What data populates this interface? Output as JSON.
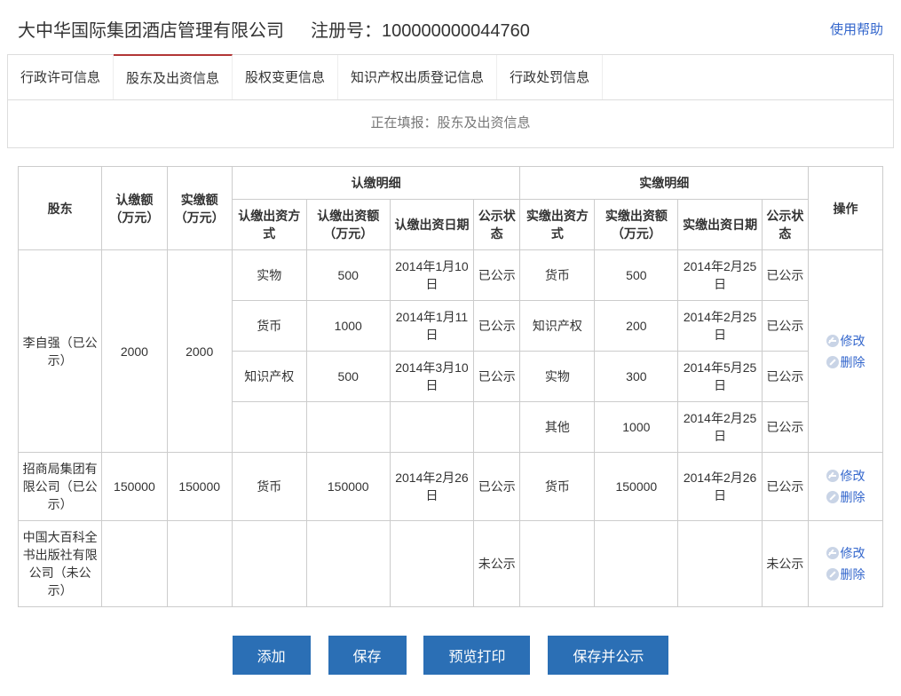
{
  "header": {
    "company_name": "大中华国际集团酒店管理有限公司",
    "reg_label": "注册号：",
    "reg_no": "100000000044760",
    "help_link": "使用帮助"
  },
  "tabs": {
    "items": [
      {
        "label": "行政许可信息",
        "active": false
      },
      {
        "label": "股东及出资信息",
        "active": true
      },
      {
        "label": "股权变更信息",
        "active": false
      },
      {
        "label": "知识产权出质登记信息",
        "active": false
      },
      {
        "label": "行政处罚信息",
        "active": false
      }
    ]
  },
  "filling_hint": "正在填报：股东及出资信息",
  "table": {
    "headers": {
      "shareholder": "股东",
      "subscribed_amt": "认缴额（万元）",
      "paid_amt": "实缴额（万元）",
      "subscribed_detail": "认缴明细",
      "paid_detail": "实缴明细",
      "actions": "操作",
      "sub_method": "认缴出资方式",
      "sub_amount": "认缴出资额（万元）",
      "sub_date": "认缴出资日期",
      "sub_status": "公示状态",
      "paid_method": "实缴出资方式",
      "paid_amount": "实缴出资额（万元）",
      "paid_date": "实缴出资日期",
      "paid_status": "公示状态"
    },
    "rows": [
      {
        "shareholder": "李自强（已公示）",
        "sub_total": "2000",
        "paid_total": "2000",
        "sub_details": [
          {
            "method": "实物",
            "amount": "500",
            "date": "2014年1月10日",
            "status": "已公示"
          },
          {
            "method": "货币",
            "amount": "1000",
            "date": "2014年1月11日",
            "status": "已公示"
          },
          {
            "method": "知识产权",
            "amount": "500",
            "date": "2014年3月10日",
            "status": "已公示"
          },
          {
            "method": "",
            "amount": "",
            "date": "",
            "status": ""
          }
        ],
        "paid_details": [
          {
            "method": "货币",
            "amount": "500",
            "date": "2014年2月25日",
            "status": "已公示"
          },
          {
            "method": "知识产权",
            "amount": "200",
            "date": "2014年2月25日",
            "status": "已公示"
          },
          {
            "method": "实物",
            "amount": "300",
            "date": "2014年5月25日",
            "status": "已公示"
          },
          {
            "method": "其他",
            "amount": "1000",
            "date": "2014年2月25日",
            "status": "已公示"
          }
        ],
        "action_edit": "修改",
        "action_del": "删除"
      },
      {
        "shareholder": "招商局集团有限公司（已公示）",
        "sub_total": "150000",
        "paid_total": "150000",
        "sub_details": [
          {
            "method": "货币",
            "amount": "150000",
            "date": "2014年2月26日",
            "status": "已公示"
          }
        ],
        "paid_details": [
          {
            "method": "货币",
            "amount": "150000",
            "date": "2014年2月26日",
            "status": "已公示"
          }
        ],
        "action_edit": "修改",
        "action_del": "删除"
      },
      {
        "shareholder": "中国大百科全书出版社有限公司（未公示）",
        "sub_total": "",
        "paid_total": "",
        "sub_details": [
          {
            "method": "",
            "amount": "",
            "date": "",
            "status": "未公示"
          }
        ],
        "paid_details": [
          {
            "method": "",
            "amount": "",
            "date": "",
            "status": "未公示"
          }
        ],
        "action_edit": "修改",
        "action_del": "删除"
      }
    ]
  },
  "buttons": {
    "add": "添加",
    "save": "保存",
    "preview": "预览打印",
    "save_publish": "保存并公示"
  },
  "colors": {
    "primary_button": "#2b6fb5",
    "link": "#3366cc",
    "active_tab_border": "#b23636",
    "border": "#cccccc"
  }
}
